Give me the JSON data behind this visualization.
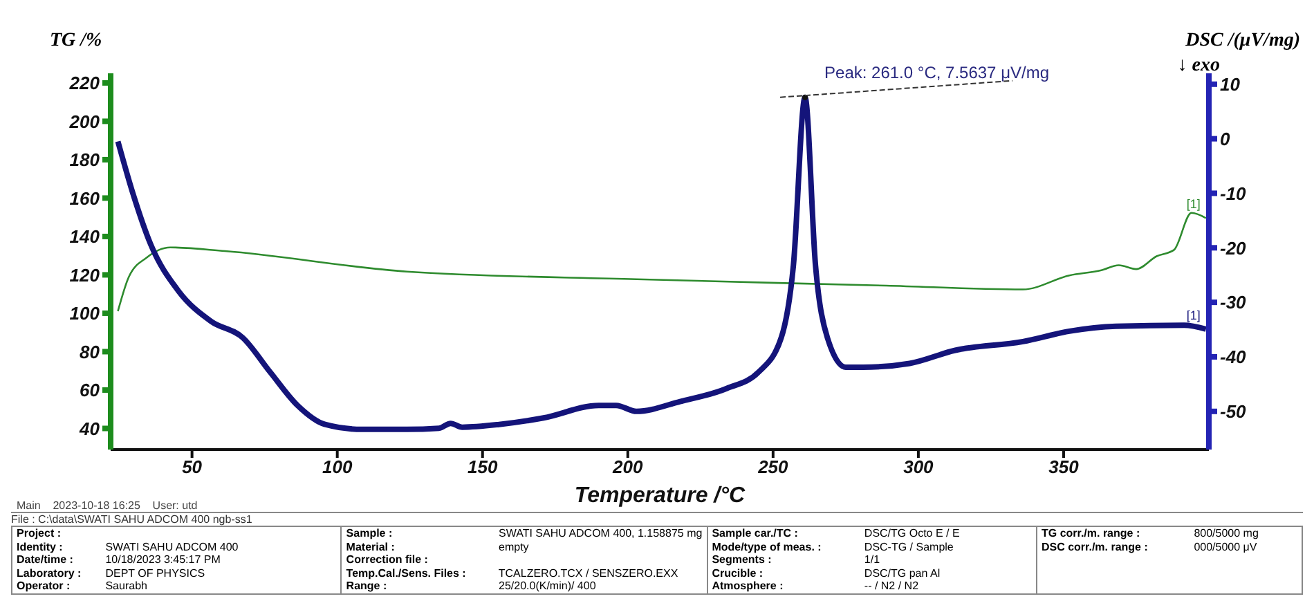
{
  "chart_data": {
    "type": "line",
    "xlabel": "Temperature /°C",
    "ylabel": "TG /%",
    "y2label": "DSC /(μV/mg)",
    "xlim": [
      22,
      400
    ],
    "xticks": [
      50,
      100,
      150,
      200,
      250,
      300,
      350
    ],
    "ylim": [
      29,
      225
    ],
    "yticks": [
      40,
      60,
      80,
      100,
      120,
      140,
      160,
      180,
      200,
      220
    ],
    "y2lim": [
      -57,
      12
    ],
    "y2ticks": [
      -50,
      -40,
      -30,
      -20,
      -10,
      0,
      10
    ],
    "series": [
      {
        "color": "#2e8b2e",
        "x": [
          24.5,
          28.3,
          34.4,
          42.5,
          61.3,
          124,
          203,
          289,
          336,
          352,
          363,
          369,
          375,
          382,
          388,
          394,
          399
        ],
        "values": [
          101.1,
          119.1,
          129,
          134.3,
          132.4,
          121.7,
          117.7,
          114.4,
          112.4,
          119.7,
          122.4,
          125,
          123,
          129.7,
          133,
          152.3,
          149.6
        ]
      },
      {
        "color": "#14147a",
        "axis": "y2",
        "x": [
          24.5,
          29.7,
          35.8,
          45.3,
          56.6,
          67.5,
          76.9,
          86.3,
          95.8,
          108.5,
          124,
          135,
          139,
          143,
          155.7,
          171,
          190,
          196,
          203,
          218,
          234,
          245,
          252.8,
          257,
          261,
          264.6,
          268.7,
          275,
          281,
          297,
          312.7,
          336,
          352,
          368,
          391.5,
          399
        ],
        "values": [
          -0.5,
          -10.1,
          -19.4,
          -27.9,
          -33.5,
          -36.5,
          -42.8,
          -48.9,
          -52.4,
          -53.3,
          -53.3,
          -53.1,
          -52.2,
          -52.9,
          -52.4,
          -51.2,
          -48.9,
          -48.9,
          -50,
          -48.2,
          -45.8,
          -42.8,
          -36.5,
          -23.2,
          7.6,
          -23.2,
          -36.5,
          -41.9,
          -41.9,
          -41.2,
          -38.8,
          -37.2,
          -35.3,
          -34.4,
          -34.2,
          -34.9
        ]
      }
    ],
    "annotations": [
      "Peak: 261.0 °C, 7.5637 μV/mg",
      "↓ exo",
      "[1]",
      "[1]",
      "Main    2023-10-18 16:25    User: utd",
      "File : C:\\data\\SWATI SAHU ADCOM 400 ngb-ss1",
      "Project :",
      "Identity : SWATI SAHU ADCOM 400",
      "Date/time : 10/18/2023 3:45:17 PM",
      "Laboratory : DEPT OF PHYSICS",
      "Operator : Saurabh",
      "Sample : SWATI SAHU ADCOM 400, 1.158875 mg",
      "Material : empty",
      "Correction file :",
      "Temp.Cal./Sens. Files : TCALZERO.TCX / SENSZERO.EXX",
      "Range : 25/20.0(K/min)/ 400",
      "Sample car./TC : DSC/TG Octo E / E",
      "Mode/type of meas. : DSC-TG / Sample",
      "Segments : 1/1",
      "Crucible : DSC/TG pan Al",
      "Atmosphere : -- / N2 / N2",
      "TG corr./m. range : 800/5000 mg",
      "DSC corr./m. range : 000/5000 μV"
    ]
  }
}
